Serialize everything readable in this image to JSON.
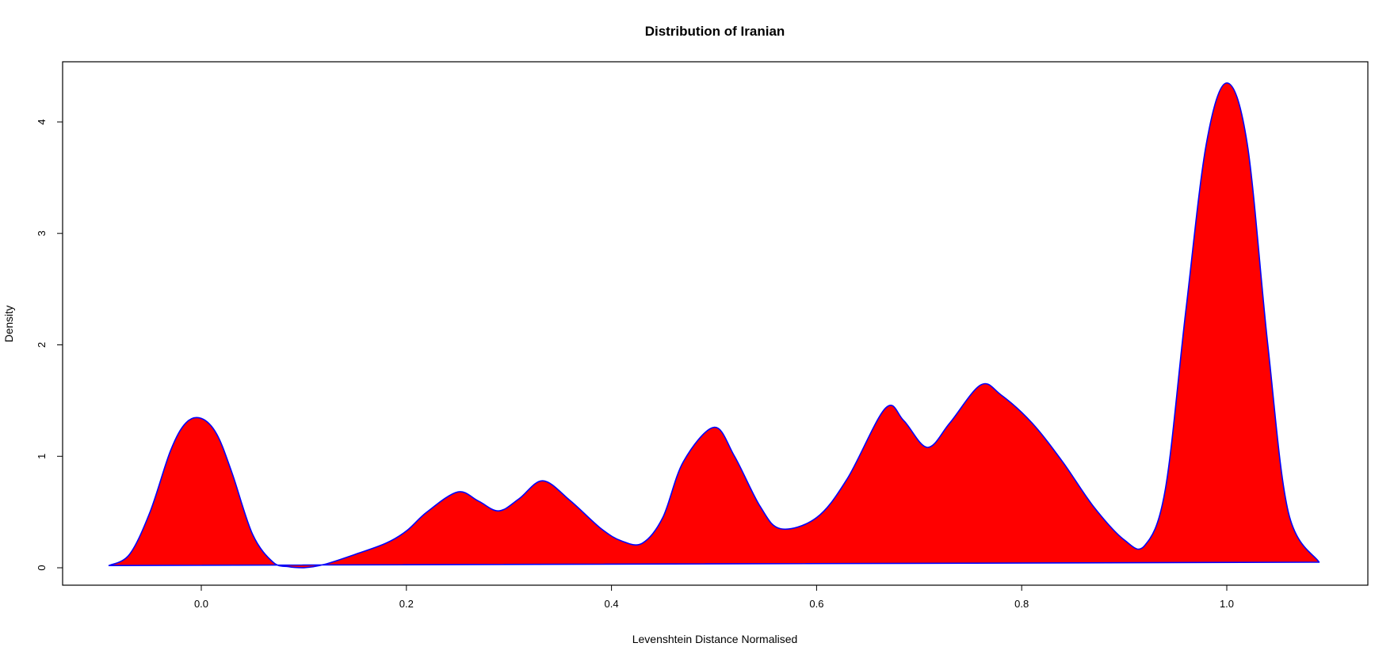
{
  "chart_data": {
    "type": "area",
    "title": "Distribution of Iranian",
    "xlabel": "Levenshtein Distance Normalised",
    "ylabel": "Density",
    "xlim": [
      -0.1,
      1.09
    ],
    "ylim": [
      0,
      4.35
    ],
    "x_ticks": [
      "0.0",
      "0.2",
      "0.4",
      "0.6",
      "0.8",
      "1.0"
    ],
    "y_ticks": [
      "0",
      "1",
      "2",
      "3",
      "4"
    ],
    "fill_color": "#ff0000",
    "line_color": "#0000ff",
    "grid": false,
    "series": [
      {
        "x": [
          -0.09,
          -0.07,
          -0.05,
          -0.03,
          -0.015,
          0.0,
          0.015,
          0.03,
          0.05,
          0.07,
          0.085,
          0.1,
          0.12,
          0.15,
          0.18,
          0.2,
          0.22,
          0.25,
          0.27,
          0.29,
          0.31,
          0.333,
          0.36,
          0.39,
          0.41,
          0.43,
          0.45,
          0.47,
          0.5,
          0.52,
          0.545,
          0.565,
          0.6,
          0.63,
          0.667,
          0.685,
          0.708,
          0.73,
          0.76,
          0.78,
          0.81,
          0.84,
          0.87,
          0.9,
          0.92,
          0.94,
          0.96,
          0.98,
          1.0,
          1.02,
          1.04,
          1.06,
          1.09
        ],
        "y": [
          0.02,
          0.12,
          0.5,
          1.05,
          1.3,
          1.34,
          1.2,
          0.85,
          0.3,
          0.05,
          0.01,
          0.0,
          0.03,
          0.12,
          0.22,
          0.33,
          0.5,
          0.68,
          0.6,
          0.51,
          0.62,
          0.78,
          0.6,
          0.35,
          0.24,
          0.22,
          0.45,
          0.95,
          1.26,
          1.0,
          0.55,
          0.35,
          0.45,
          0.8,
          1.43,
          1.32,
          1.08,
          1.3,
          1.64,
          1.55,
          1.3,
          0.95,
          0.55,
          0.25,
          0.2,
          0.7,
          2.3,
          3.8,
          4.35,
          3.8,
          2.0,
          0.5,
          0.05
        ]
      }
    ]
  }
}
